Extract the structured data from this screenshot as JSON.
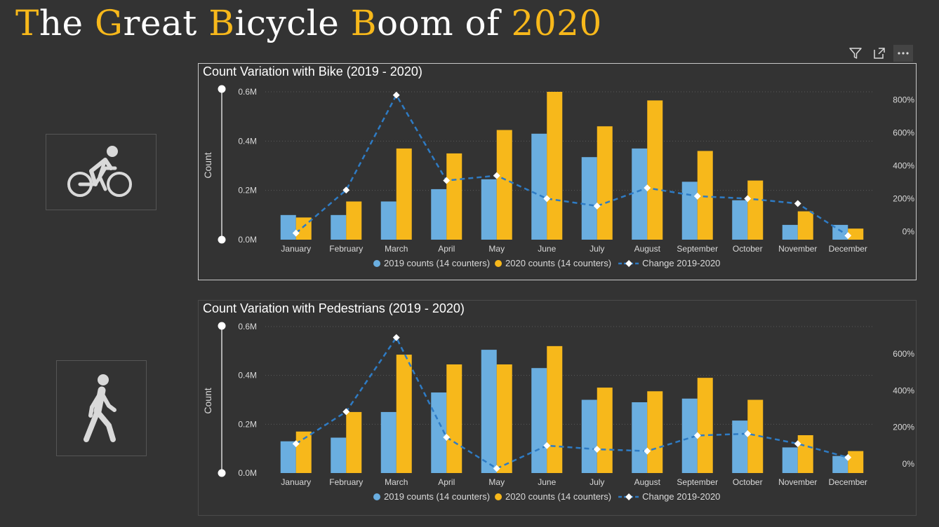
{
  "page": {
    "title_parts": [
      {
        "text": "T",
        "hl": true
      },
      {
        "text": "he ",
        "hl": false
      },
      {
        "text": "G",
        "hl": true
      },
      {
        "text": "reat ",
        "hl": false
      },
      {
        "text": "B",
        "hl": true
      },
      {
        "text": "icycle ",
        "hl": false
      },
      {
        "text": "B",
        "hl": true
      },
      {
        "text": "oom of ",
        "hl": false
      },
      {
        "text": "2020",
        "hl": true
      }
    ],
    "accent_color": "#f7b81b"
  },
  "toolbar": {
    "icons": [
      "filter-icon",
      "focus-mode-icon",
      "more-options-icon"
    ]
  },
  "colors": {
    "series_2019": "#6aaee0",
    "series_2020": "#f7b81b",
    "series_change": "#2e7bc4",
    "marker": "#ffffff",
    "text": "#d9d9d9"
  },
  "chart_data": [
    {
      "type": "bar",
      "title": "Count Variation with Bike (2019 - 2020)",
      "ylabel": "Count",
      "categories": [
        "January",
        "February",
        "March",
        "April",
        "May",
        "June",
        "July",
        "August",
        "September",
        "October",
        "November",
        "December"
      ],
      "ylim": [
        0,
        0.6
      ],
      "y_ticks": [
        "0.0M",
        "0.2M",
        "0.4M",
        "0.6M"
      ],
      "y2lim": [
        -50,
        850
      ],
      "y2_ticks": [
        "0%",
        "200%",
        "400%",
        "600%",
        "800%"
      ],
      "series": [
        {
          "name": "2019 counts (14 counters)",
          "values": [
            0.1,
            0.1,
            0.155,
            0.205,
            0.245,
            0.43,
            0.335,
            0.37,
            0.235,
            0.16,
            0.06,
            0.06
          ]
        },
        {
          "name": "2020 counts (14 counters)",
          "values": [
            0.09,
            0.155,
            0.37,
            0.35,
            0.445,
            0.6,
            0.46,
            0.565,
            0.36,
            0.24,
            0.115,
            0.045
          ]
        }
      ],
      "line_series": {
        "name": "Change 2019-2020",
        "values": [
          -10,
          252,
          830,
          310,
          340,
          200,
          155,
          265,
          215,
          200,
          170,
          -25
        ]
      },
      "legend_position": "bottom"
    },
    {
      "type": "bar",
      "title": "Count Variation with Pedestrians (2019 - 2020)",
      "ylabel": "Count",
      "categories": [
        "January",
        "February",
        "March",
        "April",
        "May",
        "June",
        "July",
        "August",
        "September",
        "October",
        "November",
        "December"
      ],
      "ylim": [
        0,
        0.6
      ],
      "y_ticks": [
        "0.0M",
        "0.2M",
        "0.4M",
        "0.6M"
      ],
      "y2lim": [
        -50,
        750
      ],
      "y2_ticks": [
        "0%",
        "200%",
        "400%",
        "600%"
      ],
      "series": [
        {
          "name": "2019 counts (14 counters)",
          "values": [
            0.13,
            0.145,
            0.25,
            0.33,
            0.505,
            0.43,
            0.3,
            0.29,
            0.305,
            0.215,
            0.105,
            0.07
          ]
        },
        {
          "name": "2020 counts (14 counters)",
          "values": [
            0.17,
            0.25,
            0.485,
            0.445,
            0.445,
            0.52,
            0.35,
            0.335,
            0.39,
            0.3,
            0.155,
            0.09
          ]
        }
      ],
      "line_series": {
        "name": "Change 2019-2020",
        "values": [
          110,
          285,
          690,
          145,
          -25,
          100,
          80,
          70,
          155,
          165,
          110,
          35
        ]
      },
      "legend_position": "bottom"
    }
  ]
}
